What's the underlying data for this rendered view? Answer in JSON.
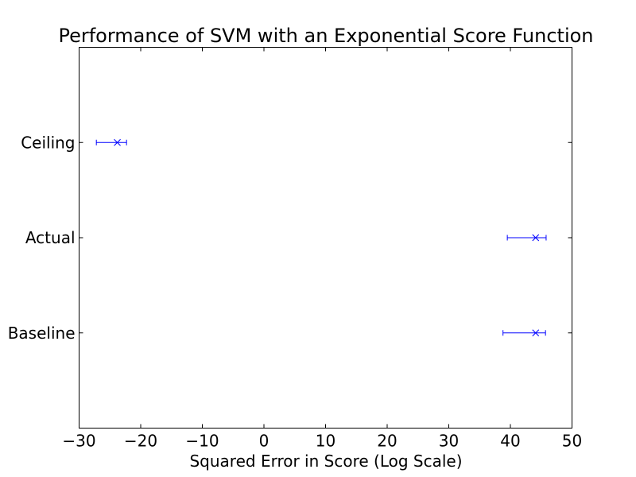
{
  "chart_data": {
    "type": "errorbar",
    "title": "Performance of SVM with an Exponential Score Function",
    "xlabel": "Squared Error in Score (Log Scale)",
    "ylabel": "",
    "xlim": [
      -30,
      50
    ],
    "x_ticks": [
      -30,
      -20,
      -10,
      0,
      10,
      20,
      30,
      40,
      50
    ],
    "x_tick_labels": [
      "−30",
      "−20",
      "−10",
      "0",
      "10",
      "20",
      "30",
      "40",
      "50"
    ],
    "categories": [
      "Baseline",
      "Actual",
      "Ceiling"
    ],
    "series": [
      {
        "marker": "x",
        "color": "#0000ff",
        "points": [
          {
            "category": "Baseline",
            "value": 44.1,
            "err_low": 38.8,
            "err_high": 45.7
          },
          {
            "category": "Actual",
            "value": 44.1,
            "err_low": 39.5,
            "err_high": 45.8
          },
          {
            "category": "Ceiling",
            "value": -23.8,
            "err_low": -27.2,
            "err_high": -22.3
          }
        ]
      }
    ],
    "grid": false,
    "legend": "none"
  }
}
